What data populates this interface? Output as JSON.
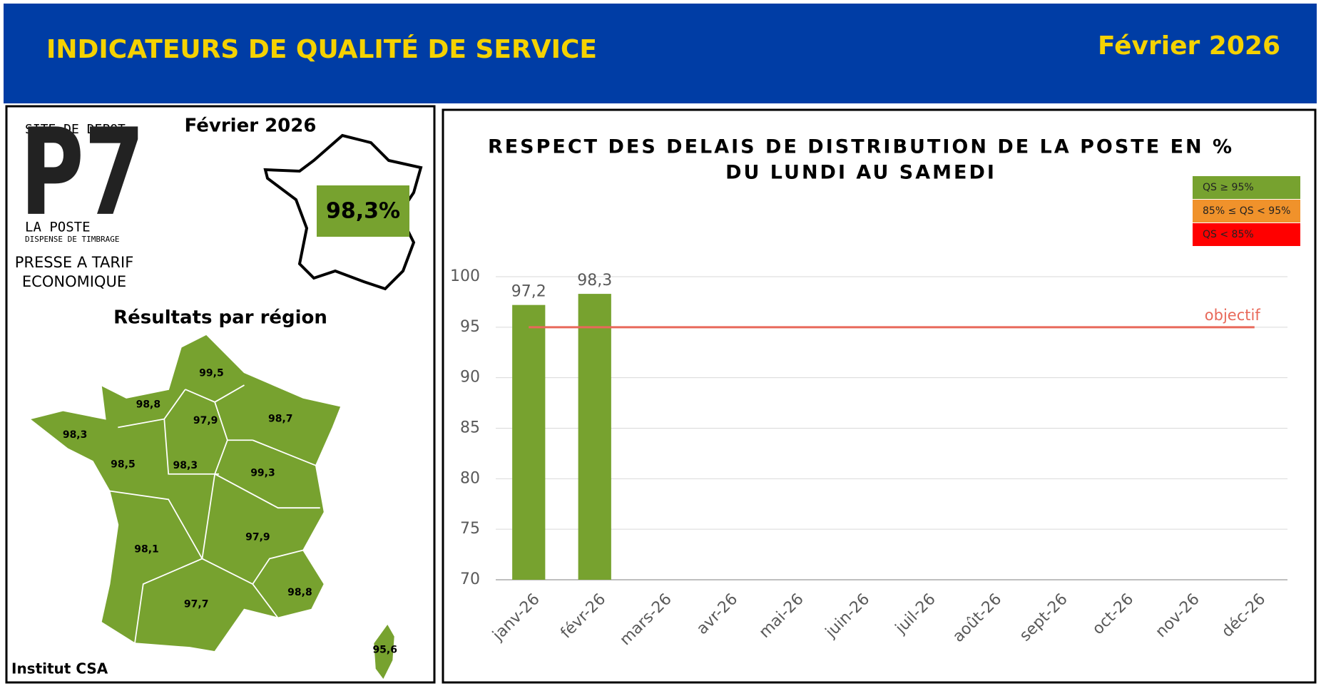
{
  "header": {
    "title": "INDICATEURS DE QUALITÉ DE SERVICE",
    "date": "Février 2026"
  },
  "left_panel": {
    "site_label": "SITE DE DEPOT",
    "code": "P7",
    "brand": "LA POSTE",
    "brand_sub": "DISPENSE DE TIMBRAGE",
    "product": [
      "PRESSE A TARIF",
      "ECONOMIQUE"
    ],
    "date": "Février 2026",
    "national": "98,3%",
    "regions_title": "Résultats par région",
    "regions": [
      "99,5",
      "98,8",
      "97,9",
      "98,7",
      "98,3",
      "98,5",
      "98,3",
      "99,3",
      "98,1",
      "97,9",
      "97,7",
      "98,8",
      "95,6"
    ],
    "source": "Institut CSA"
  },
  "chart_data": {
    "type": "bar",
    "title": [
      "RESPECT DES DELAIS DE DISTRIBUTION DE LA POSTE EN %",
      "DU LUNDI AU SAMEDI"
    ],
    "categories": [
      "janv-26",
      "févr-26",
      "mars-26",
      "avr-26",
      "mai-26",
      "juin-26",
      "juil-26",
      "août-26",
      "sept-26",
      "oct-26",
      "nov-26",
      "déc-26"
    ],
    "values": [
      97.2,
      98.3,
      null,
      null,
      null,
      null,
      null,
      null,
      null,
      null,
      null,
      null
    ],
    "value_labels": [
      "97,2",
      "98,3",
      null,
      null,
      null,
      null,
      null,
      null,
      null,
      null,
      null,
      null
    ],
    "color": "#77a22f",
    "ylim": [
      70,
      100
    ],
    "yticks": [
      70,
      75,
      80,
      85,
      90,
      95,
      100
    ],
    "grid": true,
    "target": {
      "value": 95,
      "label": "objectif",
      "color": "#e8695a"
    },
    "legend": [
      {
        "label": "QS ≥ 95%",
        "color": "#77a22f"
      },
      {
        "label": "85% ≤ QS < 95%",
        "color": "#f0922b"
      },
      {
        "label": "QS < 85%",
        "color": "#ff0000"
      }
    ]
  }
}
